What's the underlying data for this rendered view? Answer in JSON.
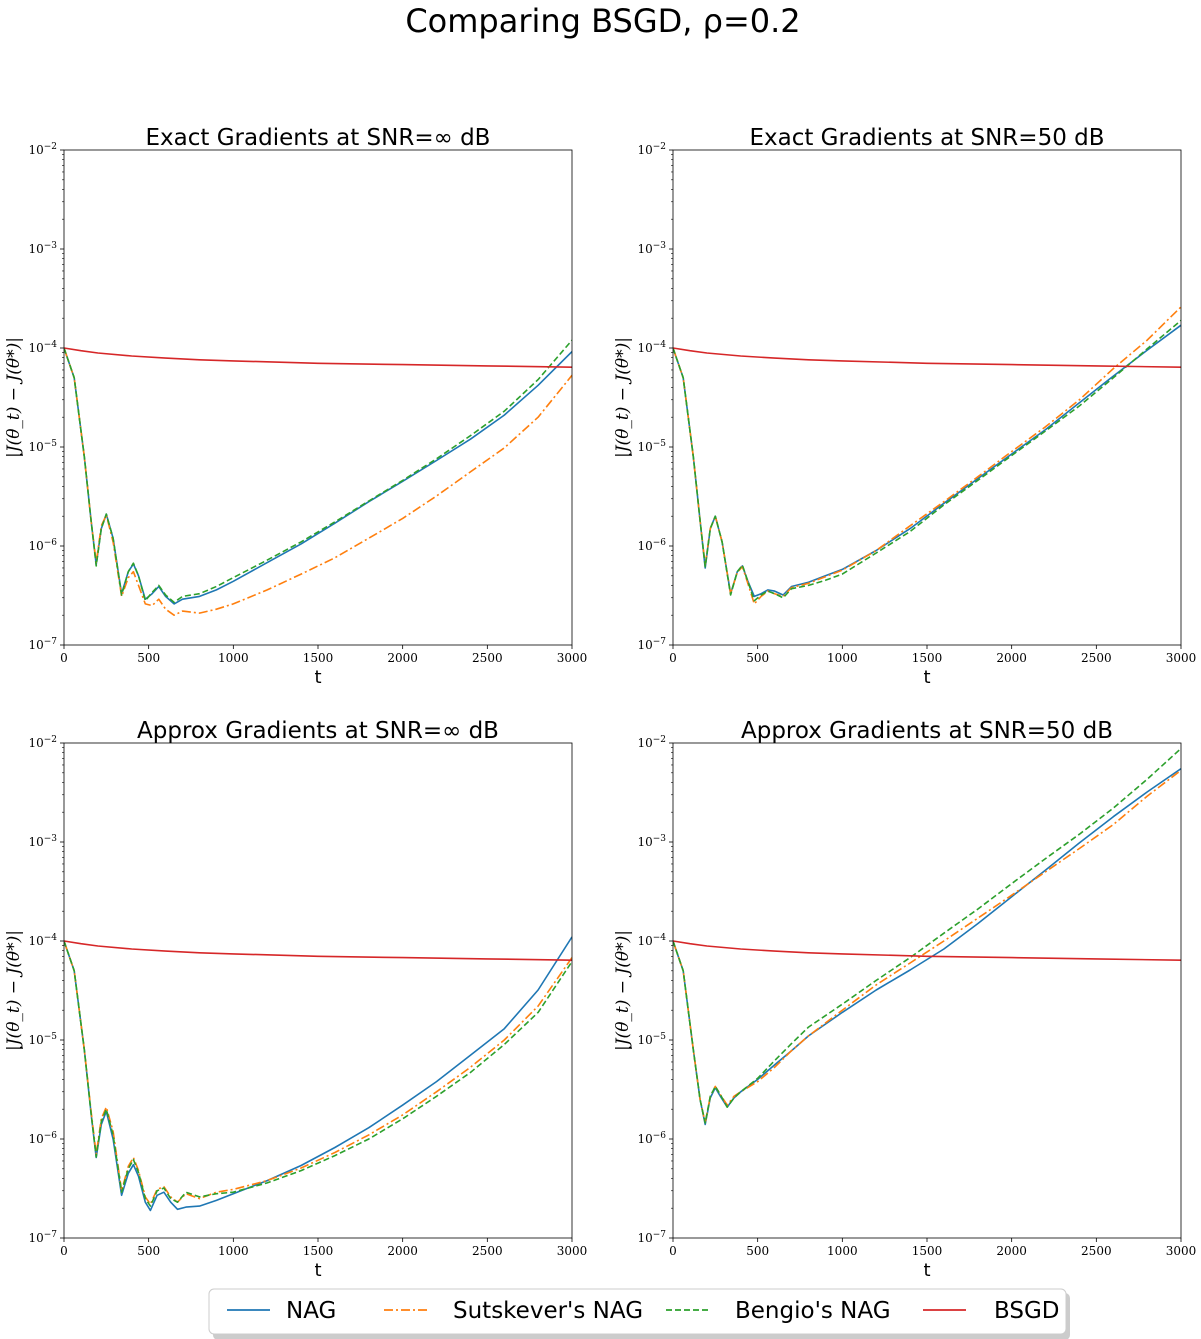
{
  "suptitle": "Comparing BSGD, ρ=0.2",
  "legend": [
    {
      "label": "NAG",
      "color": "#1f77b4",
      "dash": "solid"
    },
    {
      "label": "Sutskever's NAG",
      "color": "#ff7f0e",
      "dash": "dashdot"
    },
    {
      "label": "Bengio's NAG",
      "color": "#2ca02c",
      "dash": "dashed"
    },
    {
      "label": "BSGD",
      "color": "#d62728",
      "dash": "solid"
    }
  ],
  "chart_data": [
    {
      "type": "line",
      "title": "Exact Gradients at SNR=∞ dB",
      "xlabel": "t",
      "ylabel": "|J(θ_t) − J(θ*)|",
      "xlim": [
        0,
        3000
      ],
      "ylim": [
        1e-07,
        0.01
      ],
      "yscale": "log",
      "x_ticks": [
        "0",
        "500",
        "1000",
        "1500",
        "2000",
        "2500",
        "3000"
      ],
      "y_ticks": [
        "10^-7",
        "10^-6",
        "10^-5",
        "10^-4",
        "10^-3",
        "10^-2"
      ],
      "grid": false,
      "series": [
        {
          "name": "NAG",
          "x": [
            0,
            60,
            120,
            160,
            190,
            220,
            250,
            290,
            340,
            380,
            410,
            440,
            480,
            520,
            560,
            600,
            650,
            700,
            800,
            900,
            1000,
            1200,
            1400,
            1600,
            1800,
            2000,
            2200,
            2400,
            2600,
            2800,
            3000
          ],
          "y": [
            0.0001,
            5e-05,
            8e-06,
            1.8e-06,
            6.5e-07,
            1.5e-06,
            2.1e-06,
            1.2e-06,
            3.3e-07,
            5.5e-07,
            6.6e-07,
            5e-07,
            2.9e-07,
            3.3e-07,
            3.9e-07,
            3.1e-07,
            2.6e-07,
            2.9e-07,
            3.1e-07,
            3.6e-07,
            4.4e-07,
            6.8e-07,
            1.05e-06,
            1.7e-06,
            2.8e-06,
            4.5e-06,
            7.3e-06,
            1.2e-05,
            2.1e-05,
            4.2e-05,
            9.2e-05
          ]
        },
        {
          "name": "Sutskever's NAG",
          "x": [
            0,
            60,
            120,
            160,
            190,
            220,
            250,
            290,
            340,
            380,
            410,
            440,
            480,
            520,
            560,
            600,
            650,
            700,
            800,
            900,
            1000,
            1200,
            1400,
            1600,
            1800,
            2000,
            2200,
            2400,
            2600,
            2800,
            3000
          ],
          "y": [
            0.0001,
            5e-05,
            8e-06,
            1.8e-06,
            6.8e-07,
            1.6e-06,
            2.05e-06,
            1.1e-06,
            3.1e-07,
            4.8e-07,
            5.5e-07,
            4e-07,
            2.6e-07,
            2.5e-07,
            2.9e-07,
            2.3e-07,
            2e-07,
            2.2e-07,
            2.1e-07,
            2.3e-07,
            2.6e-07,
            3.6e-07,
            5.2e-07,
            7.6e-07,
            1.2e-06,
            1.9e-06,
            3.2e-06,
            5.6e-06,
            9.8e-06,
            2e-05,
            5.3e-05
          ]
        },
        {
          "name": "Bengio's NAG",
          "x": [
            0,
            60,
            120,
            160,
            190,
            220,
            250,
            290,
            340,
            380,
            410,
            440,
            480,
            520,
            560,
            600,
            650,
            700,
            800,
            900,
            1000,
            1200,
            1400,
            1600,
            1800,
            2000,
            2200,
            2400,
            2600,
            2800,
            3000
          ],
          "y": [
            0.0001,
            5e-05,
            8e-06,
            1.8e-06,
            6.3e-07,
            1.5e-06,
            2.1e-06,
            1.2e-06,
            3.2e-07,
            5.5e-07,
            6.7e-07,
            5e-07,
            2.8e-07,
            3.4e-07,
            4e-07,
            3.2e-07,
            2.7e-07,
            3.1e-07,
            3.3e-07,
            3.9e-07,
            4.8e-07,
            7.2e-07,
            1.1e-06,
            1.75e-06,
            2.85e-06,
            4.6e-06,
            7.6e-06,
            1.3e-05,
            2.3e-05,
            4.8e-05,
            0.00012
          ]
        },
        {
          "name": "BSGD",
          "x": [
            0,
            100,
            200,
            400,
            600,
            800,
            1000,
            1500,
            2000,
            2500,
            3000
          ],
          "y": [
            0.0001,
            9.4e-05,
            8.9e-05,
            8.3e-05,
            7.9e-05,
            7.6e-05,
            7.4e-05,
            7e-05,
            6.8e-05,
            6.6e-05,
            6.4e-05
          ]
        }
      ]
    },
    {
      "type": "line",
      "title": "Exact Gradients at SNR=50 dB",
      "xlabel": "t",
      "ylabel": "|J(θ_t) − J(θ*)|",
      "xlim": [
        0,
        3000
      ],
      "ylim": [
        1e-07,
        0.01
      ],
      "yscale": "log",
      "x_ticks": [
        "0",
        "500",
        "1000",
        "1500",
        "2000",
        "2500",
        "3000"
      ],
      "y_ticks": [
        "10^-7",
        "10^-6",
        "10^-5",
        "10^-4",
        "10^-3",
        "10^-2"
      ],
      "grid": false,
      "series": [
        {
          "name": "NAG",
          "x": [
            0,
            60,
            120,
            160,
            190,
            220,
            250,
            290,
            340,
            380,
            410,
            440,
            480,
            520,
            560,
            600,
            650,
            700,
            800,
            900,
            1000,
            1200,
            1400,
            1600,
            1800,
            2000,
            2200,
            2400,
            2600,
            2800,
            3000
          ],
          "y": [
            0.0001,
            5e-05,
            8e-06,
            1.8e-06,
            6e-07,
            1.5e-06,
            2e-06,
            1.1e-06,
            3.3e-07,
            5.5e-07,
            6.3e-07,
            4.5e-07,
            3.1e-07,
            3.3e-07,
            3.6e-07,
            3.5e-07,
            3.2e-07,
            3.9e-07,
            4.3e-07,
            5e-07,
            5.8e-07,
            9e-07,
            1.5e-06,
            2.7e-06,
            4.8e-06,
            8.5e-06,
            1.5e-05,
            2.8e-05,
            5.2e-05,
            9.5e-05,
            0.00017
          ]
        },
        {
          "name": "Sutskever's NAG",
          "x": [
            0,
            60,
            120,
            160,
            190,
            220,
            250,
            290,
            340,
            380,
            410,
            440,
            480,
            520,
            560,
            600,
            650,
            700,
            800,
            900,
            1000,
            1200,
            1400,
            1600,
            1800,
            2000,
            2200,
            2400,
            2600,
            2800,
            3000
          ],
          "y": [
            0.0001,
            5e-05,
            8e-06,
            1.8e-06,
            6.4e-07,
            1.5e-06,
            2e-06,
            1.1e-06,
            3.3e-07,
            5.4e-07,
            6.2e-07,
            4.3e-07,
            2.6e-07,
            3.1e-07,
            3.5e-07,
            3.3e-07,
            3.1e-07,
            3.8e-07,
            4.2e-07,
            4.9e-07,
            5.7e-07,
            9e-07,
            1.6e-06,
            2.8e-06,
            5e-06,
            9e-06,
            1.6e-05,
            3e-05,
            6.2e-05,
            0.00012,
            0.00026
          ]
        },
        {
          "name": "Bengio's NAG",
          "x": [
            0,
            60,
            120,
            160,
            190,
            220,
            250,
            290,
            340,
            380,
            410,
            440,
            480,
            520,
            560,
            600,
            650,
            700,
            800,
            900,
            1000,
            1200,
            1400,
            1600,
            1800,
            2000,
            2200,
            2400,
            2600,
            2800,
            3000
          ],
          "y": [
            0.0001,
            5e-05,
            8e-06,
            1.8e-06,
            6.2e-07,
            1.5e-06,
            2e-06,
            1.1e-06,
            3.2e-07,
            5.5e-07,
            6.4e-07,
            4.5e-07,
            2.8e-07,
            3.2e-07,
            3.5e-07,
            3.3e-07,
            3e-07,
            3.7e-07,
            4e-07,
            4.5e-07,
            5.2e-07,
            8.5e-07,
            1.4e-06,
            2.6e-06,
            4.6e-06,
            8.2e-06,
            1.45e-05,
            2.6e-05,
            5e-05,
            9.8e-05,
            0.00019
          ]
        },
        {
          "name": "BSGD",
          "x": [
            0,
            100,
            200,
            400,
            600,
            800,
            1000,
            1500,
            2000,
            2500,
            3000
          ],
          "y": [
            0.0001,
            9.4e-05,
            8.9e-05,
            8.3e-05,
            7.9e-05,
            7.6e-05,
            7.4e-05,
            7e-05,
            6.8e-05,
            6.6e-05,
            6.4e-05
          ]
        }
      ]
    },
    {
      "type": "line",
      "title": "Approx Gradients at SNR=∞ dB",
      "xlabel": "t",
      "ylabel": "|J(θ_t) − J(θ*)|",
      "xlim": [
        0,
        3000
      ],
      "ylim": [
        1e-07,
        0.01
      ],
      "yscale": "log",
      "x_ticks": [
        "0",
        "500",
        "1000",
        "1500",
        "2000",
        "2500",
        "3000"
      ],
      "y_ticks": [
        "10^-7",
        "10^-6",
        "10^-5",
        "10^-4",
        "10^-3",
        "10^-2"
      ],
      "grid": false,
      "series": [
        {
          "name": "NAG",
          "x": [
            0,
            60,
            120,
            160,
            190,
            220,
            250,
            290,
            340,
            380,
            410,
            440,
            480,
            510,
            550,
            590,
            630,
            670,
            720,
            800,
            900,
            1000,
            1200,
            1400,
            1600,
            1800,
            2000,
            2200,
            2400,
            2600,
            2800,
            3000
          ],
          "y": [
            0.0001,
            5e-05,
            8e-06,
            1.8e-06,
            6.5e-07,
            1.4e-06,
            1.9e-06,
            1e-06,
            2.7e-07,
            4.5e-07,
            5.5e-07,
            4.2e-07,
            2.3e-07,
            1.9e-07,
            2.7e-07,
            2.9e-07,
            2.3e-07,
            1.95e-07,
            2.05e-07,
            2.1e-07,
            2.4e-07,
            2.8e-07,
            3.8e-07,
            5.4e-07,
            8.2e-07,
            1.3e-06,
            2.2e-06,
            3.8e-06,
            7e-06,
            1.3e-05,
            3.2e-05,
            0.00011
          ]
        },
        {
          "name": "Sutskever's NAG",
          "x": [
            0,
            60,
            120,
            160,
            190,
            220,
            250,
            290,
            340,
            380,
            410,
            440,
            480,
            510,
            550,
            590,
            630,
            670,
            720,
            800,
            900,
            1000,
            1200,
            1400,
            1600,
            1800,
            2000,
            2200,
            2400,
            2600,
            2800,
            3000
          ],
          "y": [
            0.0001,
            5e-05,
            8e-06,
            1.9e-06,
            7e-07,
            1.6e-06,
            2.1e-06,
            1.2e-06,
            3e-07,
            5.3e-07,
            6.5e-07,
            4.8e-07,
            2.6e-07,
            2.2e-07,
            3.1e-07,
            3.3e-07,
            2.6e-07,
            2.3e-07,
            2.8e-07,
            2.5e-07,
            2.9e-07,
            3.1e-07,
            3.8e-07,
            5.1e-07,
            7.3e-07,
            1.1e-06,
            1.75e-06,
            3e-06,
            5.3e-06,
            1e-05,
            2.2e-05,
            6.8e-05
          ]
        },
        {
          "name": "Bengio's NAG",
          "x": [
            0,
            60,
            120,
            160,
            190,
            220,
            250,
            290,
            340,
            380,
            410,
            440,
            480,
            510,
            550,
            590,
            630,
            670,
            720,
            800,
            900,
            1000,
            1200,
            1400,
            1600,
            1800,
            2000,
            2200,
            2400,
            2600,
            2800,
            3000
          ],
          "y": [
            0.0001,
            5e-05,
            8e-06,
            1.8e-06,
            6.6e-07,
            1.5e-06,
            2e-06,
            1.1e-06,
            2.9e-07,
            5e-07,
            6.2e-07,
            4.6e-07,
            2.5e-07,
            2.1e-07,
            3e-07,
            3.2e-07,
            2.5e-07,
            2.3e-07,
            2.9e-07,
            2.6e-07,
            2.8e-07,
            2.9e-07,
            3.6e-07,
            4.8e-07,
            6.8e-07,
            1e-06,
            1.6e-06,
            2.7e-06,
            4.7e-06,
            9e-06,
            1.9e-05,
            6.2e-05
          ]
        },
        {
          "name": "BSGD",
          "x": [
            0,
            100,
            200,
            400,
            600,
            800,
            1000,
            1500,
            2000,
            2500,
            3000
          ],
          "y": [
            0.0001,
            9.4e-05,
            8.9e-05,
            8.3e-05,
            7.9e-05,
            7.6e-05,
            7.4e-05,
            7e-05,
            6.8e-05,
            6.6e-05,
            6.4e-05
          ]
        }
      ]
    },
    {
      "type": "line",
      "title": "Approx Gradients at SNR=50 dB",
      "xlabel": "t",
      "ylabel": "|J(θ_t) − J(θ*)|",
      "xlim": [
        0,
        3000
      ],
      "ylim": [
        1e-07,
        0.01
      ],
      "yscale": "log",
      "x_ticks": [
        "0",
        "500",
        "1000",
        "1500",
        "2000",
        "2500",
        "3000"
      ],
      "y_ticks": [
        "10^-7",
        "10^-6",
        "10^-5",
        "10^-4",
        "10^-3",
        "10^-2"
      ],
      "grid": false,
      "series": [
        {
          "name": "NAG",
          "x": [
            0,
            60,
            120,
            160,
            190,
            220,
            250,
            280,
            320,
            360,
            400,
            500,
            600,
            700,
            800,
            1000,
            1200,
            1400,
            1600,
            1800,
            2000,
            2200,
            2400,
            2600,
            2800,
            3000
          ],
          "y": [
            0.0001,
            5e-05,
            8e-06,
            2.5e-06,
            1.4e-06,
            2.6e-06,
            3.3e-06,
            2.7e-06,
            2.1e-06,
            2.6e-06,
            3e-06,
            4e-06,
            5.6e-06,
            7.8e-06,
            1.1e-05,
            1.9e-05,
            3.2e-05,
            5.1e-05,
            8.3e-05,
            0.00015,
            0.00028,
            0.00052,
            0.00098,
            0.0018,
            0.0032,
            0.0055
          ]
        },
        {
          "name": "Sutskever's NAG",
          "x": [
            0,
            60,
            120,
            160,
            190,
            220,
            250,
            280,
            320,
            360,
            400,
            500,
            600,
            700,
            800,
            1000,
            1200,
            1400,
            1600,
            1800,
            2000,
            2200,
            2400,
            2600,
            2800,
            3000
          ],
          "y": [
            0.0001,
            5e-05,
            8e-06,
            2.5e-06,
            1.45e-06,
            2.7e-06,
            3.4e-06,
            2.8e-06,
            2.2e-06,
            2.7e-06,
            3e-06,
            3.8e-06,
            5.3e-06,
            7.8e-06,
            1.1e-05,
            2e-05,
            3.6e-05,
            6e-05,
            0.0001,
            0.00017,
            0.00029,
            0.0005,
            0.00086,
            0.0015,
            0.0029,
            0.0053
          ]
        },
        {
          "name": "Bengio's NAG",
          "x": [
            0,
            60,
            120,
            160,
            190,
            220,
            250,
            280,
            320,
            360,
            400,
            500,
            600,
            700,
            800,
            1000,
            1200,
            1400,
            1600,
            1800,
            2000,
            2200,
            2400,
            2600,
            2800,
            3000
          ],
          "y": [
            0.0001,
            5e-05,
            8e-06,
            2.5e-06,
            1.45e-06,
            2.7e-06,
            3.4e-06,
            2.8e-06,
            2.1e-06,
            2.6e-06,
            3e-06,
            4.1e-06,
            6.2e-06,
            9.2e-06,
            1.35e-05,
            2.3e-05,
            4e-05,
            6.8e-05,
            0.00012,
            0.00021,
            0.00038,
            0.00068,
            0.0012,
            0.0022,
            0.0043,
            0.0088
          ]
        },
        {
          "name": "BSGD",
          "x": [
            0,
            100,
            200,
            400,
            600,
            800,
            1000,
            1500,
            2000,
            2500,
            3000
          ],
          "y": [
            0.0001,
            9.4e-05,
            8.9e-05,
            8.3e-05,
            7.9e-05,
            7.6e-05,
            7.4e-05,
            7e-05,
            6.8e-05,
            6.6e-05,
            6.4e-05
          ]
        }
      ]
    }
  ]
}
